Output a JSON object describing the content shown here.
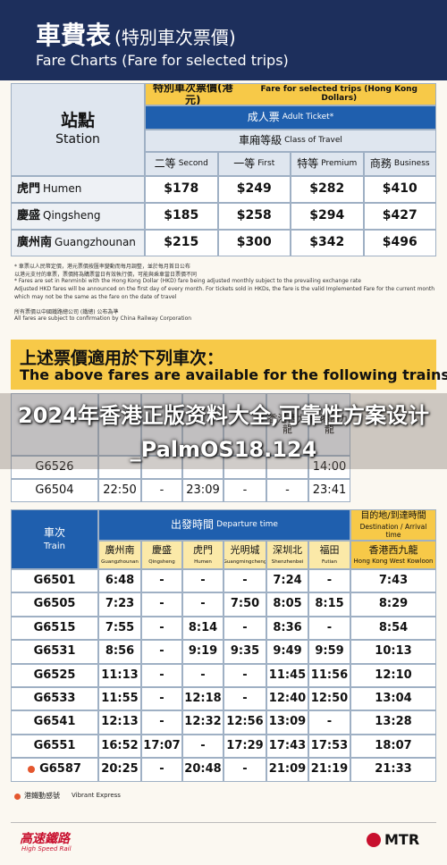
{
  "header": {
    "title_main": "車費表",
    "title_sub": "(特別車次票價)",
    "subtitle": "Fare Charts (Fare for selected trips)"
  },
  "fare_table": {
    "station_zh": "站點",
    "station_en": "Station",
    "caption_zh": "特別車次票價(港元)",
    "caption_en": "Fare for selected trips (Hong Kong Dollars)",
    "ticket_zh": "成人票",
    "ticket_en": "Adult Ticket*",
    "class_zh": "車廂等級",
    "class_en": "Class of Travel",
    "columns": [
      {
        "zh": "二等",
        "en": "Second"
      },
      {
        "zh": "一等",
        "en": "First"
      },
      {
        "zh": "特等",
        "en": "Premium"
      },
      {
        "zh": "商務",
        "en": "Business"
      }
    ],
    "rows": [
      {
        "zh": "虎門",
        "en": "Humen",
        "fares": [
          "$178",
          "$249",
          "$282",
          "$410"
        ]
      },
      {
        "zh": "慶盛",
        "en": "Qingsheng",
        "fares": [
          "$185",
          "$258",
          "$294",
          "$427"
        ]
      },
      {
        "zh": "廣州南",
        "en": "Guangzhounan",
        "fares": [
          "$215",
          "$300",
          "$342",
          "$496"
        ]
      }
    ]
  },
  "notes": [
    "* 車票以人民幣定價，港元票價按匯率變動而每月調整，並於每月首日公布",
    "以港元支付的車票，票價將為購票當日有效執行價，可能與乘車當日票價不同",
    "* Fares are set in Renminbi with the Hong Kong Dollar (HKD) fare being adjusted monthly subject to the prevailing exchange rate",
    "Adjusted HKD fares will be announced on the first day of every month. For tickets sold in HKDs, the fare is the valid Implemented Fare for the current month",
    "which may not be the same as the fare on the date of travel",
    "所有票價以中國鐵路總公司 (鐵總) 公布為準",
    "All fares are subject to confirmation by China Railway Corporation"
  ],
  "section": {
    "heading_zh": "上述票價適用於下列車次：",
    "heading_en": "The above fares are available for the following trains:"
  },
  "watermark": "2024年香港正版资料大全,可靠性方案设计_PalmOS18.124",
  "upper_table": {
    "header": [
      null,
      null,
      null,
      null,
      null,
      "香港西九龍",
      "香港西九龍"
    ],
    "rows": [
      [
        "G6526",
        null,
        null,
        null,
        null,
        null,
        "14:00"
      ],
      [
        "G6504",
        "22:50",
        "-",
        "23:09",
        "-",
        "-",
        "23:41"
      ]
    ]
  },
  "timetable": {
    "train_zh": "車次",
    "train_en": "Train",
    "departure_zh": "出發時間",
    "departure_en": "Departure time",
    "destination_zh": "目的地/到達時間",
    "destination_en": "Destination / Arrival time",
    "stations": [
      {
        "zh": "廣州南",
        "en": "Guangzhounan"
      },
      {
        "zh": "慶盛",
        "en": "Qingsheng"
      },
      {
        "zh": "虎門",
        "en": "Humen"
      },
      {
        "zh": "光明城",
        "en": "Guangmingcheng"
      },
      {
        "zh": "深圳北",
        "en": "Shenzhenbei"
      },
      {
        "zh": "福田",
        "en": "Futian"
      },
      {
        "zh": "香港西九龍",
        "en": "Hong Kong West Kowloon"
      }
    ],
    "rows": [
      {
        "train": "G6501",
        "times": [
          "6:48",
          "-",
          "-",
          "-",
          "7:24",
          "-",
          "7:43"
        ]
      },
      {
        "train": "G6505",
        "times": [
          "7:23",
          "-",
          "-",
          "7:50",
          "8:05",
          "8:15",
          "8:29"
        ]
      },
      {
        "train": "G6515",
        "times": [
          "7:55",
          "-",
          "8:14",
          "-",
          "8:36",
          "-",
          "8:54"
        ]
      },
      {
        "train": "G6531",
        "times": [
          "8:56",
          "-",
          "9:19",
          "9:35",
          "9:49",
          "9:59",
          "10:13"
        ]
      },
      {
        "train": "G6525",
        "times": [
          "11:13",
          "-",
          "-",
          "-",
          "11:45",
          "11:56",
          "12:10"
        ]
      },
      {
        "train": "G6533",
        "times": [
          "11:55",
          "-",
          "12:18",
          "-",
          "12:40",
          "12:50",
          "13:04"
        ]
      },
      {
        "train": "G6541",
        "times": [
          "12:13",
          "-",
          "12:32",
          "12:56",
          "13:09",
          "-",
          "13:28"
        ]
      },
      {
        "train": "G6551",
        "times": [
          "16:52",
          "17:07",
          "-",
          "17:29",
          "17:43",
          "17:53",
          "18:07"
        ]
      },
      {
        "train": "G6587",
        "times": [
          "20:25",
          "-",
          "20:48",
          "-",
          "21:09",
          "21:19",
          "21:33"
        ]
      }
    ]
  },
  "legend": {
    "label_zh": "港鐵動感號",
    "label_en": "Vibrant Express"
  },
  "footer": {
    "logo_zh": "高速鐵路",
    "logo_en": "High Speed Rail",
    "brand": "MTR"
  }
}
